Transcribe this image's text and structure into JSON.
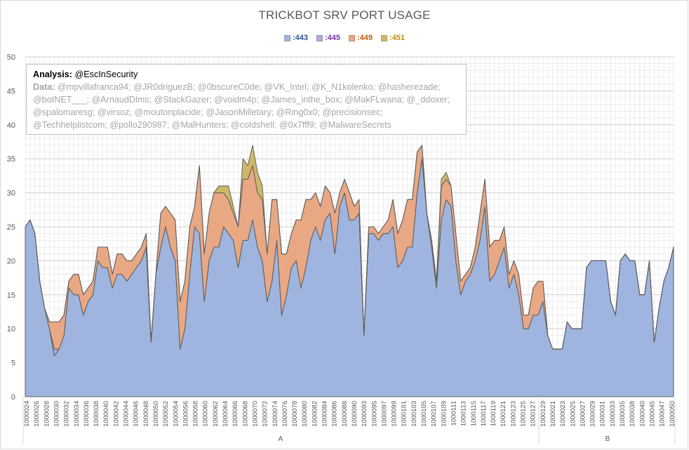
{
  "chart_data": {
    "type": "area",
    "stacked": true,
    "title": "TRICKBOT SRV PORT USAGE",
    "ylim": [
      0,
      50
    ],
    "yticks": [
      0,
      5,
      10,
      15,
      20,
      25,
      30,
      35,
      40,
      45,
      50
    ],
    "grid": true,
    "legend_position": "top",
    "series": [
      {
        "name": ":443",
        "color": "#9fb5df",
        "legend_text_color": "#2f5597",
        "values": [
          25,
          26,
          24,
          17,
          13,
          10,
          6,
          7,
          9,
          16,
          15,
          15,
          12,
          14,
          15,
          20,
          19,
          19,
          16,
          18,
          18,
          17,
          18,
          19,
          20,
          22,
          8,
          18,
          22,
          25,
          22,
          20,
          7,
          10,
          18,
          25,
          24,
          14,
          20,
          22,
          22,
          25,
          24,
          23,
          19,
          23,
          23,
          26,
          22,
          20,
          14,
          17,
          23,
          12,
          15,
          19,
          20,
          16,
          19,
          23,
          25,
          23,
          26,
          27,
          21,
          28,
          30,
          26,
          26,
          27,
          9,
          24,
          24,
          23,
          24,
          24,
          25,
          19,
          20,
          22,
          22,
          30,
          35,
          27,
          22,
          16,
          26,
          29,
          28,
          20,
          15,
          17,
          18,
          20,
          23,
          28,
          17,
          18,
          20,
          22,
          16,
          18,
          15,
          10,
          10,
          12,
          12,
          14,
          9,
          7,
          7,
          7,
          11,
          10,
          10,
          10,
          19,
          20,
          20,
          20,
          20,
          14,
          12,
          20,
          21,
          20,
          20,
          15,
          15,
          20,
          8,
          13,
          17,
          19,
          22
        ]
      },
      {
        "name": ":445",
        "color": "#b4a7d6",
        "legend_text_color": "#7030a0",
        "values": [
          0,
          0,
          0,
          0,
          0,
          0,
          1,
          0,
          0,
          0,
          0,
          0,
          0,
          0,
          0,
          0,
          0,
          0,
          0,
          0,
          0,
          0,
          0,
          0,
          0,
          0,
          0,
          0,
          0,
          0,
          0,
          0,
          0,
          0,
          0,
          0,
          0,
          0,
          0,
          0,
          0,
          0,
          0,
          0,
          0,
          0,
          0,
          0,
          0,
          0,
          0,
          0,
          0,
          0,
          0,
          0,
          0,
          0,
          0,
          0,
          0,
          0,
          0,
          0,
          0,
          0,
          0,
          0,
          0,
          0,
          0,
          0,
          0,
          0,
          0,
          0,
          0,
          0,
          0,
          0,
          0,
          0,
          0,
          0,
          0,
          0,
          0,
          0,
          0,
          0,
          0,
          0,
          0,
          0,
          0,
          0,
          0,
          0,
          0,
          0,
          0,
          0,
          0,
          0,
          0,
          0,
          0,
          0,
          0,
          0,
          0,
          0,
          0,
          0,
          0,
          0,
          0,
          0,
          0,
          0,
          0,
          0,
          0,
          0,
          0,
          0,
          0,
          0,
          0,
          0,
          0,
          0,
          0,
          0,
          0
        ]
      },
      {
        "name": ":449",
        "color": "#e8a884",
        "legend_text_color": "#c55a11",
        "values": [
          0,
          0,
          0,
          0,
          0,
          1,
          4,
          4,
          3,
          1,
          3,
          3,
          3,
          2,
          2,
          2,
          3,
          3,
          2,
          3,
          3,
          3,
          2,
          2,
          2,
          2,
          0,
          0,
          5,
          3,
          5,
          6,
          7,
          7,
          7,
          3,
          10,
          7,
          7,
          8,
          8,
          5,
          5,
          4,
          6,
          9,
          9,
          8,
          8,
          9,
          7,
          12,
          6,
          9,
          6,
          5,
          6,
          10,
          10,
          6,
          5,
          5,
          5,
          3,
          6,
          2,
          2,
          4,
          2,
          2,
          0,
          1,
          1,
          1,
          1,
          2,
          4,
          5,
          6,
          7,
          7,
          6,
          2,
          0,
          1,
          1,
          5,
          3,
          3,
          4,
          2,
          1,
          1,
          2,
          4,
          4,
          5,
          5,
          3,
          3,
          2,
          2,
          3,
          2,
          2,
          4,
          5,
          3,
          0,
          0,
          0,
          0,
          0,
          0,
          0,
          0,
          0,
          0,
          0,
          0,
          0,
          0,
          0,
          0,
          0,
          0,
          0,
          0,
          0,
          0,
          0,
          0,
          0,
          0,
          0
        ]
      },
      {
        "name": ":451",
        "color": "#cdb86a",
        "legend_text_color": "#bf9000",
        "values": [
          0,
          0,
          0,
          0,
          0,
          0,
          0,
          0,
          0,
          0,
          0,
          0,
          0,
          0,
          0,
          0,
          0,
          0,
          0,
          0,
          0,
          0,
          0,
          0,
          0,
          0,
          0,
          0,
          0,
          0,
          0,
          0,
          0,
          0,
          0,
          0,
          0,
          0,
          0,
          0,
          1,
          1,
          2,
          1,
          0,
          3,
          2,
          3,
          3,
          2,
          0,
          0,
          0,
          0,
          0,
          0,
          0,
          0,
          0,
          0,
          0,
          0,
          0,
          0,
          0,
          0,
          0,
          0,
          0,
          0,
          0,
          0,
          0,
          0,
          0,
          0,
          0,
          0,
          0,
          0,
          0,
          0,
          0,
          0,
          0,
          0,
          1,
          1,
          0,
          0,
          0,
          0,
          0,
          0,
          0,
          0,
          0,
          0,
          0,
          0,
          0,
          0,
          0,
          0,
          0,
          0,
          0,
          0,
          0,
          0,
          0,
          0,
          0,
          0,
          0,
          0,
          0,
          0,
          0,
          0,
          0,
          0,
          0,
          0,
          0,
          0,
          0,
          0,
          0,
          0,
          0,
          0,
          0,
          0,
          0
        ]
      }
    ],
    "x_tick_labels": [
      "1000024",
      "1000026",
      "1000028",
      "1000030",
      "1000032",
      "1000034",
      "1000036",
      "1000038",
      "1000040",
      "1000042",
      "1000044",
      "1000046",
      "1000048",
      "1000050",
      "1000052",
      "1000054",
      "1000056",
      "1000058",
      "1000060",
      "1000062",
      "1000064",
      "1000066",
      "1000068",
      "1000070",
      "1000072",
      "1000074",
      "1000076",
      "1000078",
      "1000080",
      "1000082",
      "1000084",
      "1000086",
      "1000088",
      "1000090",
      "1000093",
      "1000095",
      "1000097",
      "1000099",
      "1000101",
      "1000103",
      "1000105",
      "1000107",
      "1000109",
      "1000111",
      "1000113",
      "1000115",
      "1000117",
      "1000119",
      "1000121",
      "1000123",
      "1000125",
      "1000127",
      "1000129",
      "1000021",
      "1000023",
      "1000025",
      "1000027",
      "1000029",
      "1000031",
      "1000033",
      "1000035",
      "1000038",
      "1000040",
      "1000045",
      "1000047",
      "1000050"
    ],
    "groups": [
      {
        "label": "A",
        "ticks": 53
      },
      {
        "label": "B",
        "ticks": 13
      }
    ]
  },
  "annotation": {
    "analysis_label": "Analysis:",
    "analysis_value": "@EscInSecurity",
    "data_label": "Data:",
    "data_value": "@mpvillafranca94; @JR0driguezB; @0bscureC0de; @VK_Intel; @K_N1kolenko; @hasherezade; @botNET___; @ArnaudDlms; @StackGazer; @voidm4p; @James_inthe_box; @MakFLwana; @_ddoxer; @spalomaresg; @virsoz; @moutonplacide; @JasonMilletary; @Ring0x0; @precisionsec; @Techhelplistcom; @pollo290987; @MalHunters; @coldshell; @0x7fff9; @MalwareSecrets"
  }
}
